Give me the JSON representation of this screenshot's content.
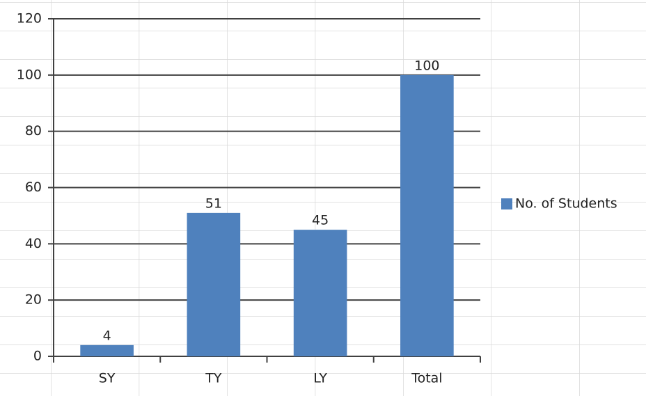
{
  "chart_data": {
    "type": "bar",
    "categories": [
      "SY",
      "TY",
      "LY",
      "Total"
    ],
    "series": [
      {
        "name": "No. of Students",
        "color": "#4f81bd",
        "values": [
          4,
          51,
          45,
          100
        ]
      }
    ],
    "ylim": [
      0,
      120
    ],
    "yticks": [
      0,
      20,
      40,
      60,
      80,
      100,
      120
    ],
    "grid": true,
    "legend": "right"
  }
}
